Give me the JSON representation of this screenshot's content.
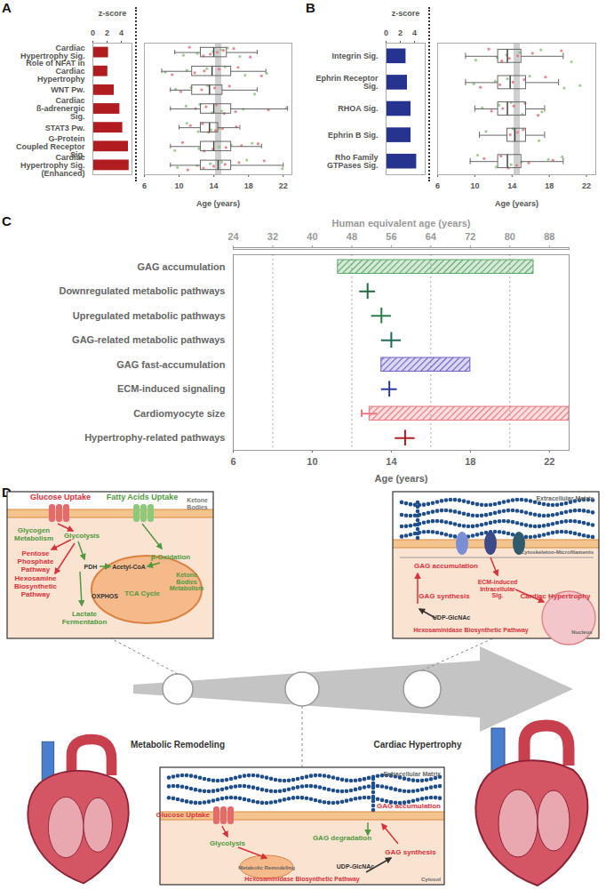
{
  "chart_data": [
    {
      "panel": "A",
      "type": "bar+box",
      "orientation": "horizontal",
      "xlabel": "z-score",
      "xlim": [
        0,
        5.5
      ],
      "xticks": [
        0,
        2,
        4
      ],
      "color": "#b01c20",
      "categories": [
        "Cardiac Hypertrophy Sig.",
        "Role of NFAT in Cardiac Hypertrophy",
        "WNT Pw.",
        "Cardiac ß-adrenergic Sig.",
        "STAT3 Pw.",
        "G-Protein Coupled Receptor Sig.",
        "Cardiac Hypertrophy Sig. (Enhanced)"
      ],
      "values": [
        2.2,
        2.1,
        3.0,
        3.8,
        4.2,
        5.0,
        5.1
      ],
      "box_xlabel": "Age (years)",
      "box_xlim": [
        6,
        23
      ],
      "box_xticks": [
        6,
        10,
        14,
        18,
        22
      ],
      "highlight_age": 14.5,
      "boxes": [
        {
          "whisker_low": 9.5,
          "q1": 12.5,
          "median": 14.0,
          "q3": 15.5,
          "whisker_high": 19.0
        },
        {
          "whisker_low": 8.0,
          "q1": 11.5,
          "median": 13.8,
          "q3": 16.0,
          "whisker_high": 20.0
        },
        {
          "whisker_low": 9.0,
          "q1": 11.5,
          "median": 13.5,
          "q3": 15.0,
          "whisker_high": 19.0
        },
        {
          "whisker_low": 9.0,
          "q1": 12.5,
          "median": 14.0,
          "q3": 16.0,
          "whisker_high": 22.5
        },
        {
          "whisker_low": 10.0,
          "q1": 12.5,
          "median": 13.5,
          "q3": 14.5,
          "whisker_high": 17.0
        },
        {
          "whisker_low": 9.0,
          "q1": 12.5,
          "median": 14.0,
          "q3": 16.0,
          "whisker_high": 19.5
        },
        {
          "whisker_low": 9.0,
          "q1": 12.5,
          "median": 14.5,
          "q3": 16.0,
          "whisker_high": 22.0
        }
      ],
      "point_series": [
        {
          "color": "#e8737b",
          "values": [
            [
              11.2,
              12.8,
              13.6,
              14.4,
              15.1,
              16.3,
              18.2
            ],
            [
              9.2,
              11.8,
              12.9,
              14.6,
              16.8,
              19.5
            ],
            [
              10.2,
              12.6,
              14.1,
              15.8
            ],
            [
              11.9,
              13.1,
              14.3,
              15.2,
              16.5,
              20.3
            ],
            [
              11.3,
              12.7,
              13.4,
              14.2,
              15.0,
              16.6
            ],
            [
              10.4,
              12.9,
              13.9,
              15.4,
              17.2,
              19.1
            ],
            [
              11.0,
              12.8,
              14.0,
              15.3,
              16.9,
              19.8
            ]
          ]
        },
        {
          "color": "#8dc77b",
          "values": [
            [
              10.5,
              12.1,
              13.9,
              14.8,
              15.6,
              17.0
            ],
            [
              8.4,
              10.9,
              13.2,
              15.3,
              17.6,
              20.1
            ],
            [
              9.6,
              11.4,
              13.3,
              18.7
            ],
            [
              10.8,
              12.4,
              13.8,
              14.9,
              17.4,
              22.4
            ],
            [
              10.9,
              12.2,
              13.7,
              14.6
            ],
            [
              9.5,
              12.3,
              14.6,
              16.0,
              18.4
            ],
            [
              9.8,
              12.1,
              13.6,
              14.9,
              17.8,
              21.9
            ]
          ]
        }
      ]
    },
    {
      "panel": "B",
      "type": "bar+box",
      "orientation": "horizontal",
      "xlabel": "z-score",
      "xlim": [
        0,
        5.5
      ],
      "xticks": [
        0,
        2,
        4
      ],
      "color": "#26338f",
      "categories": [
        "Integrin Sig.",
        "Ephrin Receptor Sig.",
        "RHOA Sig.",
        "Ephrin B Sig.",
        "Rho Family GTPases Sig."
      ],
      "values": [
        2.8,
        3.0,
        3.5,
        3.5,
        4.3
      ],
      "box_xlabel": "Age (years)",
      "box_xlim": [
        6,
        23
      ],
      "box_xticks": [
        6,
        10,
        14,
        18,
        22
      ],
      "highlight_age": 14.5,
      "boxes": [
        {
          "whisker_low": 9.0,
          "q1": 12.5,
          "median": 13.5,
          "q3": 15.0,
          "whisker_high": 19.5
        },
        {
          "whisker_low": 9.0,
          "q1": 12.5,
          "median": 13.8,
          "q3": 15.5,
          "whisker_high": 19.0
        },
        {
          "whisker_low": 10.0,
          "q1": 12.5,
          "median": 13.5,
          "q3": 15.5,
          "whisker_high": 17.5
        },
        {
          "whisker_low": 10.5,
          "q1": 13.5,
          "median": 14.3,
          "q3": 15.5,
          "whisker_high": 17.5
        },
        {
          "whisker_low": 9.5,
          "q1": 12.5,
          "median": 13.5,
          "q3": 15.0,
          "whisker_high": 19.5
        }
      ],
      "point_series": [
        {
          "color": "#e8737b",
          "values": [
            [
              11.5,
              12.9,
              13.7,
              14.6,
              16.2,
              19.3
            ],
            [
              10.6,
              12.7,
              14.1,
              15.3,
              17.6
            ],
            [
              11.8,
              13.0,
              14.2,
              15.4,
              16.8
            ],
            [
              13.8,
              14.6,
              15.2
            ],
            [
              11.0,
              12.8,
              13.6,
              14.5,
              15.8,
              18.4
            ]
          ]
        },
        {
          "color": "#8dc77b",
          "values": [
            [
              10.1,
              12.4,
              13.4,
              14.8,
              17.1,
              20.4
            ],
            [
              9.9,
              12.2,
              13.5,
              15.9,
              19.6,
              21.3
            ],
            [
              10.8,
              12.6,
              13.9,
              15.1,
              17.2
            ],
            [
              11.2,
              14.1,
              16.9
            ],
            [
              10.3,
              12.3,
              13.9,
              15.0,
              17.9,
              19.4
            ]
          ]
        }
      ]
    },
    {
      "panel": "C",
      "type": "timeline",
      "xlabel": "Age (years)",
      "xlim": [
        6,
        23
      ],
      "xticks": [
        6,
        10,
        14,
        18,
        22
      ],
      "top_xlabel": "Human equivalent age (years)",
      "top_xlim": [
        24,
        92
      ],
      "top_xticks": [
        24,
        32,
        40,
        48,
        56,
        64,
        72,
        80,
        88
      ],
      "dotted_lines": [
        8,
        12,
        16,
        20
      ],
      "rows": [
        {
          "label": "GAG accumulation",
          "start": 11.3,
          "end": 21.2,
          "color": "#5aa865"
        },
        {
          "label": "Downregulated metabolic pathways",
          "value": 12.8,
          "error": 0.4,
          "color": "#1e6b3c"
        },
        {
          "label": "Upregulated metabolic pathways",
          "value": 13.5,
          "error": 0.5,
          "color": "#2a7a4a"
        },
        {
          "label": "GAG-related metabolic pathways",
          "value": 14.0,
          "error": 0.5,
          "color": "#1f6b55"
        },
        {
          "label": "GAG fast-accumulation",
          "start": 13.5,
          "end": 18.0,
          "color": "#6a5fc4"
        },
        {
          "label": "ECM-induced signaling",
          "value": 13.9,
          "error": 0.4,
          "color": "#2b3a9e"
        },
        {
          "label": "Cardiomyocyte size",
          "start": 12.9,
          "end": 23,
          "start_error": 0.4,
          "color": "#e8777f"
        },
        {
          "label": "Hypertrophy-related pathways",
          "value": 14.7,
          "error": 0.5,
          "color": "#b01c20"
        }
      ]
    }
  ],
  "diagram": {
    "panel": "D",
    "metabolic_box": {
      "labels": [
        "Glucose Uptake",
        "Fatty Acids Uptake",
        "Ketone Bodies",
        "Glycogen Metabolism",
        "Glycolysis",
        "Pentose Phosphate Pathway",
        "Hexosamine Biosynthetic Pathway",
        "PDH",
        "Acetyl-CoA",
        "β-Oxidation",
        "TCA Cycle",
        "Ketone Bodies Metabolism",
        "Lactate Fermentation",
        "OXPHOS"
      ]
    },
    "hypertrophy_box": {
      "labels": [
        "Extracellular Matrix",
        "Cytoskeleton-Microfilaments",
        "GAG accumulation",
        "GAG synthesis",
        "ECM-induced Intracellular Sig.",
        "Cardiac Hypertrophy",
        "Nucleus",
        "UDP-GlcNAc",
        "Hexosaminidase Biosynthetic Pathway"
      ]
    },
    "gag_box": {
      "labels": [
        "Extracellular Matrix",
        "Glucose Uptake",
        "Glycolysis",
        "Metabolic Remodeling",
        "Hexosaminidase Biosynthetic Pathway",
        "UDP-GlcNAc",
        "GAG degradation",
        "GAG synthesis",
        "GAG accumulation",
        "Cytosol"
      ]
    },
    "stage_labels": [
      "Metabolic Remodeling",
      "Cardiac Hypertrophy"
    ]
  }
}
